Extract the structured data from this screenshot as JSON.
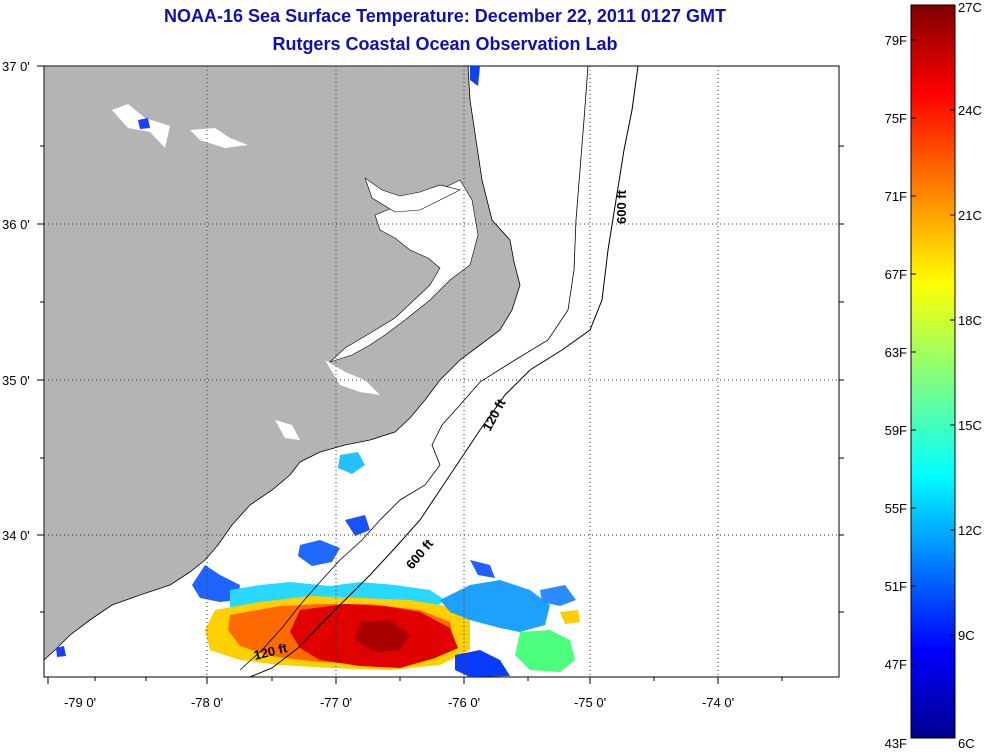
{
  "title": "NOAA-16 Sea Surface Temperature:  December 22, 2011 0127 GMT",
  "subtitle": "Rutgers Coastal Ocean Observation Lab",
  "lat_labels": [
    "37 0'",
    "36 0'",
    "35 0'",
    "34 0'"
  ],
  "lon_labels": [
    "-79 0'",
    "-78 0'",
    "-77 0'",
    "-76 0'",
    "-75 0'",
    "-74 0'"
  ],
  "contour_labels": [
    "600 ft",
    "120 ft",
    "600 ft",
    "120 ft"
  ],
  "colorbar": {
    "fahrenheit_labels": [
      "79F",
      "75F",
      "71F",
      "67F",
      "63F",
      "59F",
      "55F",
      "51F",
      "47F",
      "43F"
    ],
    "celsius_labels": [
      "27C",
      "24C",
      "21C",
      "18C",
      "15C",
      "12C",
      "9C",
      "6C"
    ],
    "colormap": [
      "#7f0000",
      "#ff0000",
      "#ff8000",
      "#ffff00",
      "#80ff80",
      "#00ffff",
      "#0080ff",
      "#0000ff",
      "#00008f"
    ]
  },
  "colors": {
    "land": "#b4b4b4",
    "ocean": "#ffffff",
    "title": "#1010b0"
  }
}
